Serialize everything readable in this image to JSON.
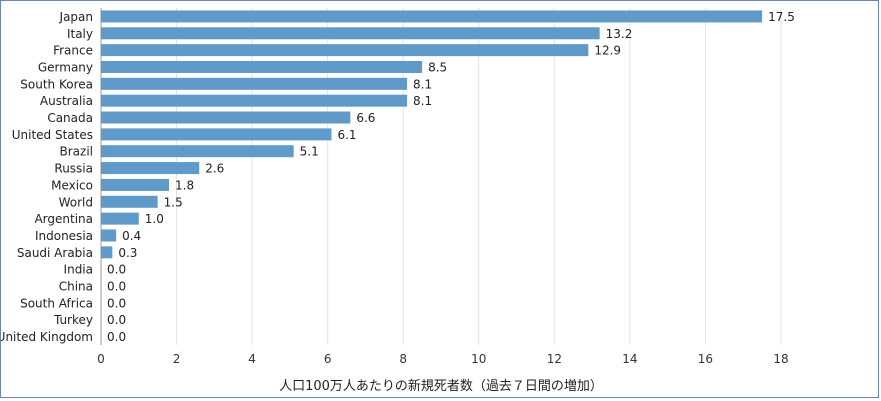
{
  "chart_data": {
    "type": "bar",
    "orientation": "horizontal",
    "categories": [
      "Japan",
      "Italy",
      "France",
      "Germany",
      "South Korea",
      "Australia",
      "Canada",
      "United States",
      "Brazil",
      "Russia",
      "Mexico",
      "World",
      "Argentina",
      "Indonesia",
      "Saudi Arabia",
      "India",
      "China",
      "South Africa",
      "Turkey",
      "United Kingdom"
    ],
    "values": [
      17.5,
      13.2,
      12.9,
      8.5,
      8.1,
      8.1,
      6.6,
      6.1,
      5.1,
      2.6,
      1.8,
      1.5,
      1.0,
      0.4,
      0.3,
      0.0,
      0.0,
      0.0,
      0.0,
      0.0
    ],
    "value_labels": [
      "17.5",
      "13.2",
      "12.9",
      "8.5",
      "8.1",
      "8.1",
      "6.6",
      "6.1",
      "5.1",
      "2.6",
      "1.8",
      "1.5",
      "1.0",
      "0.4",
      "0.3",
      "0.0",
      "0.0",
      "0.0",
      "0.0",
      "0.0"
    ],
    "xlabel": "人口100万人あたりの新規死者数（過去７日間の増加）",
    "xlim": [
      0,
      18
    ],
    "xticks": [
      0,
      2,
      4,
      6,
      8,
      10,
      12,
      14,
      16,
      18
    ],
    "grid": "vertical",
    "bar_color": "#5f9ac9"
  }
}
